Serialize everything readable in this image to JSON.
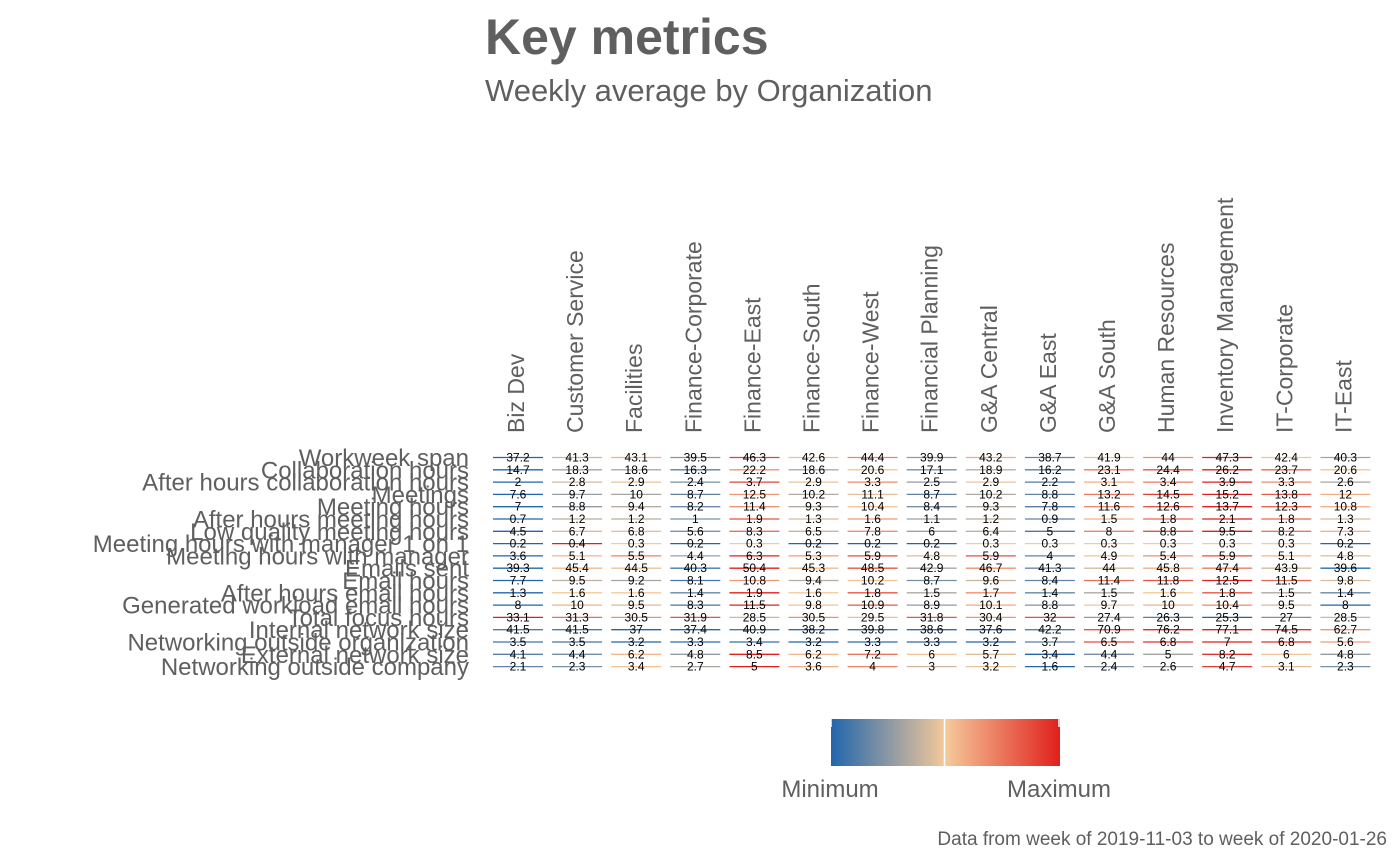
{
  "header": {
    "title": "Key metrics",
    "subtitle": "Weekly average by Organization"
  },
  "caption": "Data from week of 2019-11-03 to week of 2020-01-26",
  "legend": {
    "min_label": "Minimum",
    "max_label": "Maximum",
    "colors": [
      "#2166ac",
      "#f5c99a",
      "#e0201b"
    ]
  },
  "chart_data": {
    "type": "heatmap",
    "title": "Key metrics",
    "subtitle": "Weekly average by Organization",
    "color_scale": "per-metric, Minimum (blue) to Maximum (red)",
    "columns": [
      "Biz Dev",
      "Customer Service",
      "Facilities",
      "Finance-Corporate",
      "Finance-East",
      "Finance-South",
      "Finance-West",
      "Financial Planning",
      "G&A Central",
      "G&A East",
      "G&A South",
      "Human Resources",
      "Inventory Management",
      "IT-Corporate",
      "IT-East"
    ],
    "rows": [
      {
        "metric": "Workweek span",
        "values": [
          "37.2",
          "41.3",
          "43.1",
          "39.5",
          "46.3",
          "42.6",
          "44.4",
          "39.9",
          "43.2",
          "38.7",
          "41.9",
          "44",
          "47.3",
          "42.4",
          "40.3"
        ]
      },
      {
        "metric": "Collaboration hours",
        "values": [
          "14.7",
          "18.3",
          "18.6",
          "16.3",
          "22.2",
          "18.6",
          "20.6",
          "17.1",
          "18.9",
          "16.2",
          "23.1",
          "24.4",
          "26.2",
          "23.7",
          "20.6"
        ]
      },
      {
        "metric": "After hours collaboration hours",
        "values": [
          "2",
          "2.8",
          "2.9",
          "2.4",
          "3.7",
          "2.9",
          "3.3",
          "2.5",
          "2.9",
          "2.2",
          "3.1",
          "3.4",
          "3.9",
          "3.3",
          "2.6"
        ]
      },
      {
        "metric": "Meetings",
        "values": [
          "7.6",
          "9.7",
          "10",
          "8.7",
          "12.5",
          "10.2",
          "11.1",
          "8.7",
          "10.2",
          "8.8",
          "13.2",
          "14.5",
          "15.2",
          "13.8",
          "12"
        ]
      },
      {
        "metric": "Meeting hours",
        "values": [
          "7",
          "8.8",
          "9.4",
          "8.2",
          "11.4",
          "9.3",
          "10.4",
          "8.4",
          "9.3",
          "7.8",
          "11.6",
          "12.6",
          "13.7",
          "12.3",
          "10.8"
        ]
      },
      {
        "metric": "After hours meeting hours",
        "values": [
          "0.7",
          "1.2",
          "1.2",
          "1",
          "1.9",
          "1.3",
          "1.6",
          "1.1",
          "1.2",
          "0.9",
          "1.5",
          "1.8",
          "2.1",
          "1.8",
          "1.3"
        ]
      },
      {
        "metric": "Low quality meeting hours",
        "values": [
          "4.5",
          "6.7",
          "6.8",
          "5.6",
          "8.3",
          "6.5",
          "7.8",
          "6",
          "6.4",
          "5",
          "8",
          "8.8",
          "9.5",
          "8.2",
          "7.3"
        ]
      },
      {
        "metric": "Meeting hours with manager 1 on 1",
        "values": [
          "0.2",
          "0.4",
          "0.3",
          "0.2",
          "0.3",
          "0.2",
          "0.2",
          "0.2",
          "0.3",
          "0.3",
          "0.3",
          "0.3",
          "0.3",
          "0.3",
          "0.2"
        ]
      },
      {
        "metric": "Meeting hours with manager",
        "values": [
          "3.6",
          "5.1",
          "5.5",
          "4.4",
          "6.3",
          "5.3",
          "5.9",
          "4.8",
          "5.9",
          "4",
          "4.9",
          "5.4",
          "5.9",
          "5.1",
          "4.8"
        ]
      },
      {
        "metric": "Emails sent",
        "values": [
          "39.3",
          "45.4",
          "44.5",
          "40.3",
          "50.4",
          "45.3",
          "48.5",
          "42.9",
          "46.7",
          "41.3",
          "44",
          "45.8",
          "47.4",
          "43.9",
          "39.6"
        ]
      },
      {
        "metric": "Email hours",
        "values": [
          "7.7",
          "9.5",
          "9.2",
          "8.1",
          "10.8",
          "9.4",
          "10.2",
          "8.7",
          "9.6",
          "8.4",
          "11.4",
          "11.8",
          "12.5",
          "11.5",
          "9.8"
        ]
      },
      {
        "metric": "After hours email hours",
        "values": [
          "1.3",
          "1.6",
          "1.6",
          "1.4",
          "1.9",
          "1.6",
          "1.8",
          "1.5",
          "1.7",
          "1.4",
          "1.5",
          "1.6",
          "1.8",
          "1.5",
          "1.4"
        ]
      },
      {
        "metric": "Generated workload email hours",
        "values": [
          "8",
          "10",
          "9.5",
          "8.3",
          "11.5",
          "9.8",
          "10.9",
          "8.9",
          "10.1",
          "8.8",
          "9.7",
          "10",
          "10.4",
          "9.5",
          "8"
        ]
      },
      {
        "metric": "Total focus hours",
        "values": [
          "33.1",
          "31.3",
          "30.5",
          "31.9",
          "28.5",
          "30.5",
          "29.5",
          "31.8",
          "30.4",
          "32",
          "27.4",
          "26.3",
          "25.3",
          "27",
          "28.5"
        ]
      },
      {
        "metric": "Internal network size",
        "values": [
          "41.5",
          "41.5",
          "37",
          "37.4",
          "40.9",
          "38.2",
          "39.8",
          "38.6",
          "37.6",
          "42.2",
          "70.9",
          "76.2",
          "77.1",
          "74.5",
          "62.7"
        ]
      },
      {
        "metric": "Networking outside organization",
        "values": [
          "3.5",
          "3.5",
          "3.2",
          "3.3",
          "3.4",
          "3.2",
          "3.3",
          "3.3",
          "3.2",
          "3.7",
          "6.5",
          "6.8",
          "7",
          "6.8",
          "5.6"
        ]
      },
      {
        "metric": "External network size",
        "values": [
          "4.1",
          "4.4",
          "6.2",
          "4.8",
          "8.5",
          "6.2",
          "7.2",
          "6",
          "5.7",
          "3.4",
          "4.4",
          "5",
          "8.2",
          "6",
          "4.8"
        ]
      },
      {
        "metric": "Networking outside company",
        "values": [
          "2.1",
          "2.3",
          "3.4",
          "2.7",
          "5",
          "3.6",
          "4",
          "3",
          "3.2",
          "1.6",
          "2.4",
          "2.6",
          "4.7",
          "3.1",
          "2.3"
        ]
      }
    ]
  }
}
